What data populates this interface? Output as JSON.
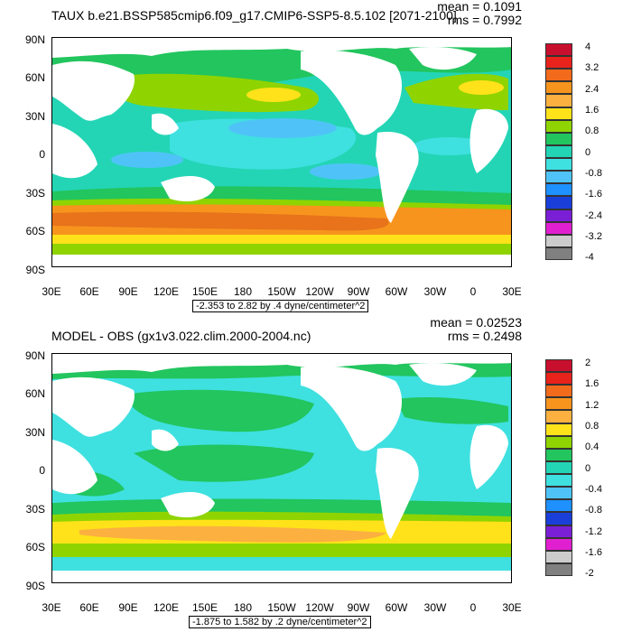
{
  "panels": [
    {
      "title": "TAUX b.e21.BSSP585cmip6.f09_g17.CMIP6-SSP5-8.5.102 [2071-2100]",
      "mean_text": "mean = 0.1091",
      "rms_text": "rms = 0.7992",
      "subtitle": "-2.353 to 2.82 by .4 dyne/centimeter^2",
      "colorbar_labels": [
        "4",
        "3.2",
        "2.4",
        "1.6",
        "0.8",
        "0",
        "-0.8",
        "-1.6",
        "-2.4",
        "-3.2",
        "-4"
      ]
    },
    {
      "title": "MODEL - OBS (gx1v3.022.clim.2000-2004.nc)",
      "mean_text": "mean = 0.02523",
      "rms_text": "rms = 0.2498",
      "subtitle": "-1.875 to 1.582 by .2 dyne/centimeter^2",
      "colorbar_labels": [
        "2",
        "1.6",
        "1.2",
        "0.8",
        "0.4",
        "0",
        "-0.4",
        "-0.8",
        "-1.2",
        "-1.6",
        "-2"
      ]
    }
  ],
  "lat_labels": [
    "90N",
    "60N",
    "30N",
    "0",
    "30S",
    "60S",
    "90S"
  ],
  "lon_labels": [
    "30E",
    "60E",
    "90E",
    "120E",
    "150E",
    "180",
    "150W",
    "120W",
    "90W",
    "60W",
    "30W",
    "0",
    "30E"
  ],
  "colorbar_colors": [
    "#c8102e",
    "#e8231c",
    "#f26a1b",
    "#f7941d",
    "#fbb040",
    "#ffe21a",
    "#8fd400",
    "#22c55e",
    "#23d5b5",
    "#3fe0e0",
    "#4fc3f7",
    "#1e90ff",
    "#1a3fd9",
    "#7b1fd6",
    "#e020d0",
    "#cccccc",
    "#808080"
  ],
  "map_colors": {
    "ocean_base": "#23d5b5",
    "ocean_light": "#3fe0e0",
    "ocean_green": "#22c55e",
    "yellow_green": "#8fd400",
    "yellow": "#ffe21a",
    "orange": "#f7941d",
    "dark_orange": "#e8731b",
    "cyan_blue": "#4fc3f7",
    "land": "#ffffff"
  }
}
